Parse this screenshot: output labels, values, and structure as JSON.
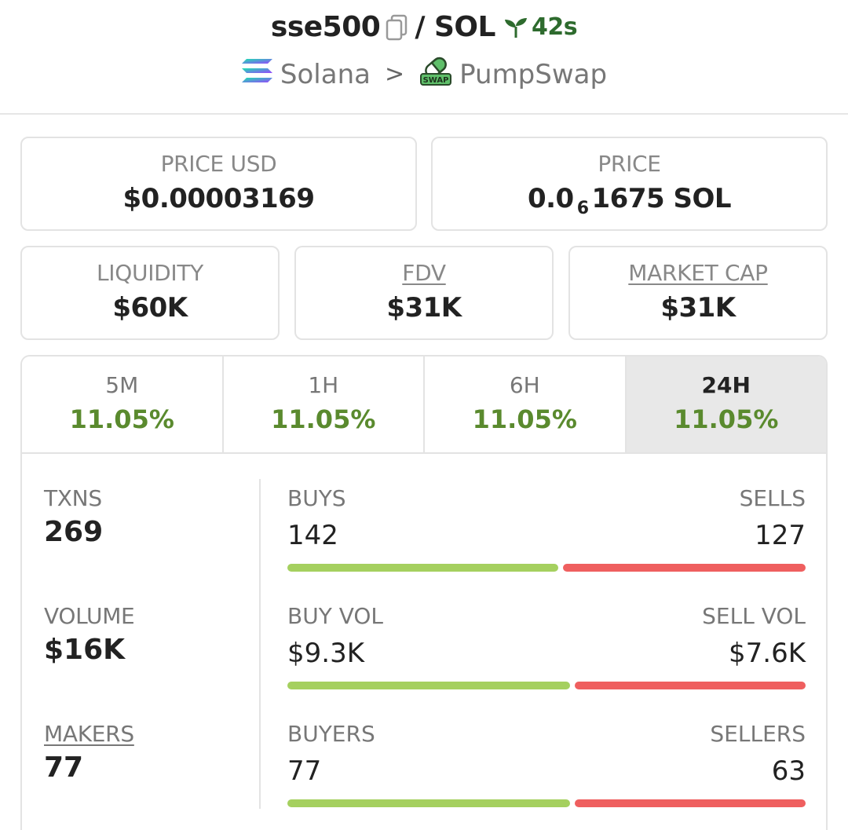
{
  "header": {
    "token": "sse500",
    "separator": "/",
    "quote": "SOL",
    "age": "42s",
    "chain": "Solana",
    "chevron": ">",
    "dex": "PumpSwap",
    "dex_logo_text": "SWAP",
    "icons": [
      "copy-icon",
      "sprout-icon",
      "solana-logo-icon",
      "pumpswap-logo-icon"
    ]
  },
  "cards": {
    "price_usd": {
      "label": "PRICE USD",
      "value": "$0.00003169"
    },
    "price": {
      "label": "PRICE",
      "prefix": "0.0",
      "subscript": "6",
      "suffix": "1675 SOL"
    },
    "liquidity": {
      "label": "LIQUIDITY",
      "value": "$60K"
    },
    "fdv": {
      "label": "FDV",
      "value": "$31K"
    },
    "market_cap": {
      "label": "MARKET CAP",
      "value": "$31K"
    }
  },
  "tabs": [
    {
      "label": "5M",
      "change": "11.05%"
    },
    {
      "label": "1H",
      "change": "11.05%"
    },
    {
      "label": "6H",
      "change": "11.05%"
    },
    {
      "label": "24H",
      "change": "11.05%",
      "active": true
    }
  ],
  "stats": {
    "txns": {
      "label": "TXNS",
      "value": "269"
    },
    "volume": {
      "label": "VOLUME",
      "value": "$16K"
    },
    "makers": {
      "label": "MAKERS",
      "value": "77"
    },
    "buys": {
      "left_label": "BUYS",
      "left_value": "142",
      "right_label": "SELLS",
      "right_value": "127",
      "left_fraction": 0.528
    },
    "buy_vol": {
      "left_label": "BUY VOL",
      "left_value": "$9.3K",
      "right_label": "SELL VOL",
      "right_value": "$7.6K",
      "left_fraction": 0.55
    },
    "buyers": {
      "left_label": "BUYERS",
      "left_value": "77",
      "right_label": "SELLERS",
      "right_value": "63",
      "left_fraction": 0.55
    }
  },
  "colors": {
    "positive": "#5a8a2e",
    "buy_bar": "#a5d05f",
    "sell_bar": "#ef5f5f",
    "age_green": "#2e6b2e"
  }
}
